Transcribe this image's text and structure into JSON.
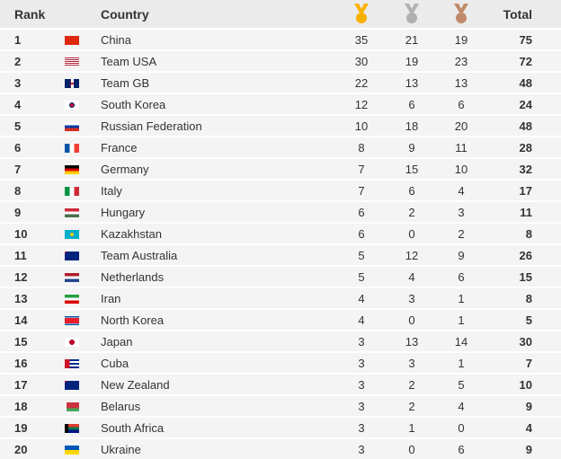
{
  "header": {
    "rank": "Rank",
    "country": "Country",
    "total": "Total"
  },
  "medal_icons": {
    "gold": "#f9b000",
    "silver": "#b0b0b0",
    "bronze": "#c08a6a"
  },
  "rows": [
    {
      "rank": "1",
      "flag": "cn",
      "country": "China",
      "gold": "35",
      "silver": "21",
      "bronze": "19",
      "total": "75"
    },
    {
      "rank": "2",
      "flag": "us",
      "country": "Team USA",
      "gold": "30",
      "silver": "19",
      "bronze": "23",
      "total": "72"
    },
    {
      "rank": "3",
      "flag": "gb",
      "country": "Team GB",
      "gold": "22",
      "silver": "13",
      "bronze": "13",
      "total": "48"
    },
    {
      "rank": "4",
      "flag": "kr",
      "country": "South Korea",
      "gold": "12",
      "silver": "6",
      "bronze": "6",
      "total": "24"
    },
    {
      "rank": "5",
      "flag": "ru",
      "country": "Russian Federation",
      "gold": "10",
      "silver": "18",
      "bronze": "20",
      "total": "48"
    },
    {
      "rank": "6",
      "flag": "fr",
      "country": "France",
      "gold": "8",
      "silver": "9",
      "bronze": "11",
      "total": "28"
    },
    {
      "rank": "7",
      "flag": "de",
      "country": "Germany",
      "gold": "7",
      "silver": "15",
      "bronze": "10",
      "total": "32"
    },
    {
      "rank": "8",
      "flag": "it",
      "country": "Italy",
      "gold": "7",
      "silver": "6",
      "bronze": "4",
      "total": "17"
    },
    {
      "rank": "9",
      "flag": "hu",
      "country": "Hungary",
      "gold": "6",
      "silver": "2",
      "bronze": "3",
      "total": "11"
    },
    {
      "rank": "10",
      "flag": "kz",
      "country": "Kazakhstan",
      "gold": "6",
      "silver": "0",
      "bronze": "2",
      "total": "8"
    },
    {
      "rank": "11",
      "flag": "au",
      "country": "Team Australia",
      "gold": "5",
      "silver": "12",
      "bronze": "9",
      "total": "26"
    },
    {
      "rank": "12",
      "flag": "nl",
      "country": "Netherlands",
      "gold": "5",
      "silver": "4",
      "bronze": "6",
      "total": "15"
    },
    {
      "rank": "13",
      "flag": "ir",
      "country": "Iran",
      "gold": "4",
      "silver": "3",
      "bronze": "1",
      "total": "8"
    },
    {
      "rank": "14",
      "flag": "kp",
      "country": "North Korea",
      "gold": "4",
      "silver": "0",
      "bronze": "1",
      "total": "5"
    },
    {
      "rank": "15",
      "flag": "jp",
      "country": "Japan",
      "gold": "3",
      "silver": "13",
      "bronze": "14",
      "total": "30"
    },
    {
      "rank": "16",
      "flag": "cu",
      "country": "Cuba",
      "gold": "3",
      "silver": "3",
      "bronze": "1",
      "total": "7"
    },
    {
      "rank": "17",
      "flag": "nz",
      "country": "New Zealand",
      "gold": "3",
      "silver": "2",
      "bronze": "5",
      "total": "10"
    },
    {
      "rank": "18",
      "flag": "by",
      "country": "Belarus",
      "gold": "3",
      "silver": "2",
      "bronze": "4",
      "total": "9"
    },
    {
      "rank": "19",
      "flag": "za",
      "country": "South Africa",
      "gold": "3",
      "silver": "1",
      "bronze": "0",
      "total": "4"
    },
    {
      "rank": "20",
      "flag": "ua",
      "country": "Ukraine",
      "gold": "3",
      "silver": "0",
      "bronze": "6",
      "total": "9"
    }
  ]
}
